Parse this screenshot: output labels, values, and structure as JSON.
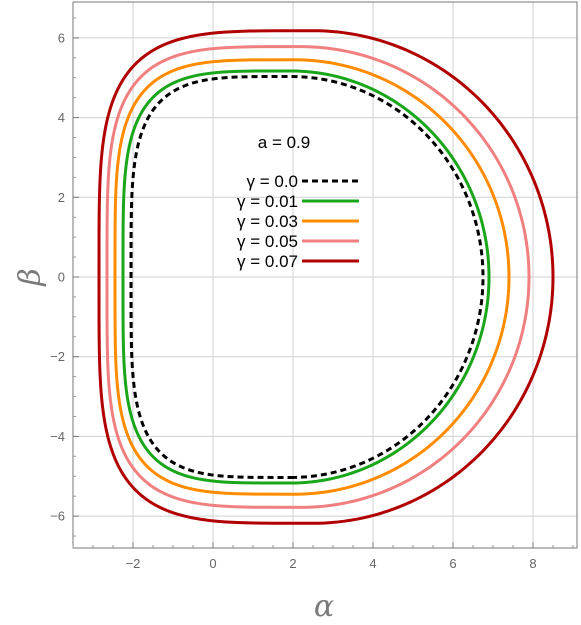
{
  "chart_data": {
    "type": "line",
    "title": "",
    "annotation": "a = 0.9",
    "xlabel": "α",
    "ylabel": "β",
    "xlim": [
      -3.5,
      9.1
    ],
    "ylim": [
      -6.8,
      6.9
    ],
    "x_ticks": [
      -2,
      0,
      2,
      4,
      6,
      8
    ],
    "y_ticks": [
      -6,
      -4,
      -2,
      0,
      2,
      4,
      6
    ],
    "x_tick_labels": [
      "−2",
      "0",
      "2",
      "4",
      "6",
      "8"
    ],
    "y_tick_labels": [
      "−6",
      "−4",
      "−2",
      "0",
      "2",
      "4",
      "6"
    ],
    "grid": true,
    "legend_position": "center",
    "series": [
      {
        "name": "γ = 0.0",
        "color": "#000000",
        "dashed": true,
        "left": -2.05,
        "right": 6.75,
        "center": 1.95,
        "top": 5.03,
        "bottom": -5.03
      },
      {
        "name": "γ = 0.01",
        "color": "#1aa61a",
        "dashed": false,
        "left": -2.25,
        "right": 6.9,
        "center": 1.95,
        "top": 5.17,
        "bottom": -5.17
      },
      {
        "name": "γ = 0.03",
        "color": "#ff8c00",
        "dashed": false,
        "left": -2.45,
        "right": 7.4,
        "center": 2.05,
        "top": 5.45,
        "bottom": -5.45
      },
      {
        "name": "γ = 0.05",
        "color": "#f08080",
        "dashed": false,
        "left": -2.65,
        "right": 7.9,
        "center": 2.2,
        "top": 5.78,
        "bottom": -5.78
      },
      {
        "name": "γ = 0.07",
        "color": "#b00000",
        "dashed": false,
        "left": -2.85,
        "right": 8.5,
        "center": 2.5,
        "top": 6.18,
        "bottom": -6.18
      }
    ]
  }
}
